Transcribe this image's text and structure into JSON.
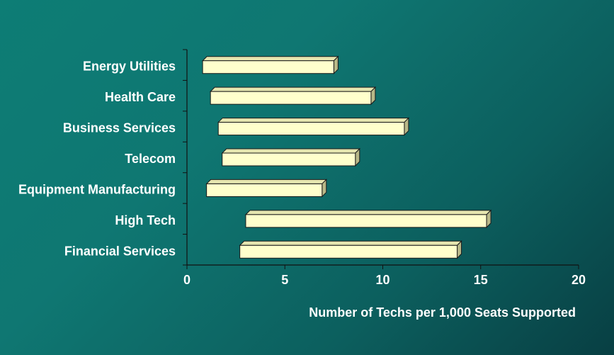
{
  "chart_data": {
    "type": "bar",
    "orientation": "horizontal",
    "style": "floating-range-3d",
    "categories": [
      "Energy Utilities",
      "Health Care",
      "Business Services",
      "Telecom",
      "Equipment Manufacturing",
      "High Tech",
      "Financial Services"
    ],
    "ranges": [
      [
        0.8,
        7.5
      ],
      [
        1.2,
        9.4
      ],
      [
        1.6,
        11.1
      ],
      [
        1.8,
        8.6
      ],
      [
        1.0,
        6.9
      ],
      [
        3.0,
        15.3
      ],
      [
        2.7,
        13.8
      ]
    ],
    "xlabel": "Number of Techs per 1,000 Seats Supported",
    "ylabel": "",
    "xlim": [
      0,
      20
    ],
    "xticks": [
      "0",
      "5",
      "10",
      "15",
      "20"
    ],
    "grid": false,
    "legend": "none",
    "colors": {
      "bar_front": "#ffffcc",
      "bar_top": "#e6e6b0",
      "bar_side": "#b8b888",
      "bar_outline": "#1a1a1a",
      "axis": "#111111",
      "text": "#ffffff"
    }
  }
}
